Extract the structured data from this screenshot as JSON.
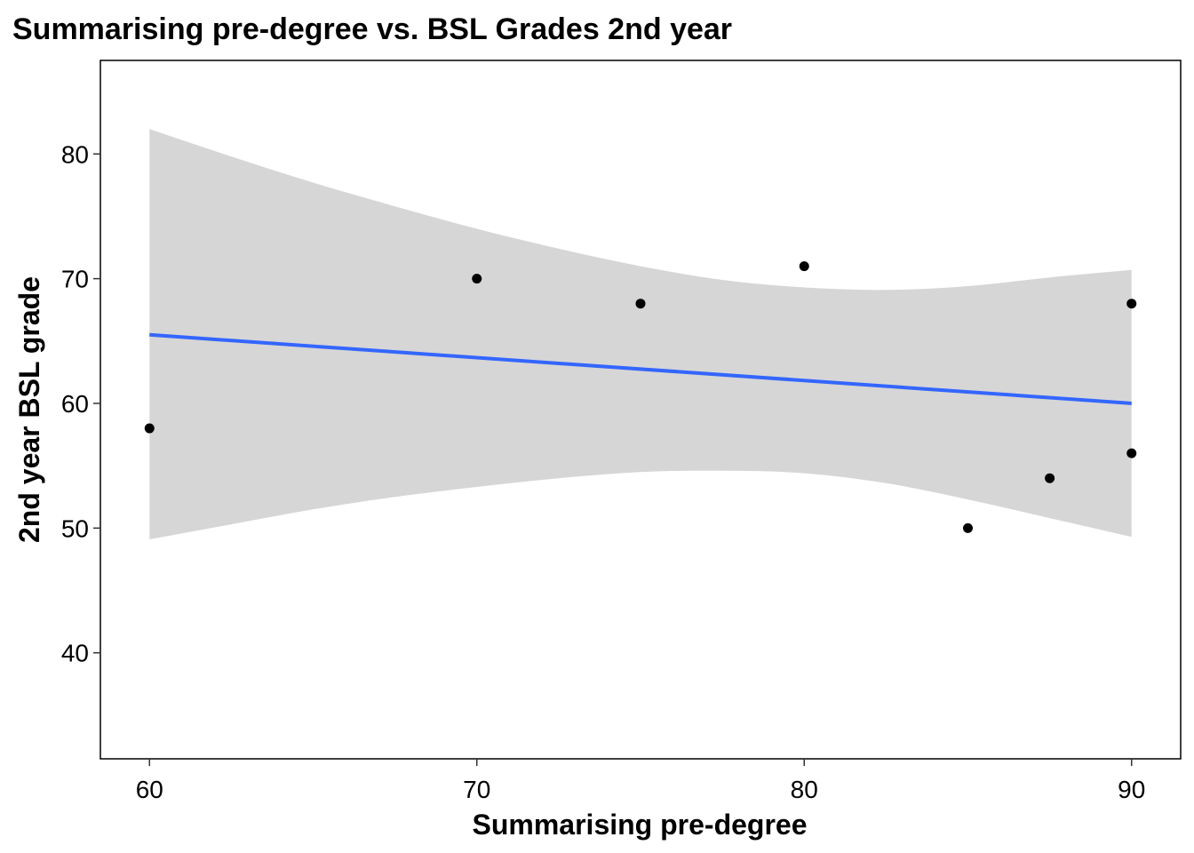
{
  "chart_data": {
    "type": "scatter",
    "title": "Summarising pre-degree vs. BSL Grades 2nd year",
    "xlabel": "Summarising pre-degree",
    "ylabel": "2nd year BSL grade",
    "xlim": [
      58.5,
      91.5
    ],
    "ylim": [
      31.5,
      87.5
    ],
    "x_ticks": [
      60,
      70,
      80,
      90
    ],
    "x_tick_labels": [
      "60",
      "70",
      "80",
      "90"
    ],
    "y_ticks": [
      40,
      50,
      60,
      70,
      80
    ],
    "y_tick_labels": [
      "40",
      "50",
      "60",
      "70",
      "80"
    ],
    "grid": false,
    "legend": "none",
    "points": [
      {
        "x": 60,
        "y": 58
      },
      {
        "x": 70,
        "y": 70
      },
      {
        "x": 75,
        "y": 68
      },
      {
        "x": 80,
        "y": 71
      },
      {
        "x": 85,
        "y": 50
      },
      {
        "x": 87.5,
        "y": 54
      },
      {
        "x": 90,
        "y": 68
      },
      {
        "x": 90,
        "y": 56
      }
    ],
    "regression_line": {
      "color": "#3366FF",
      "points": [
        {
          "x": 60,
          "y": 65.5
        },
        {
          "x": 90,
          "y": 60.0
        }
      ]
    },
    "confidence_band": {
      "color": "#D6D6D6",
      "x": [
        60,
        62.5,
        65,
        67.5,
        70,
        72.5,
        75,
        77.5,
        80,
        82.5,
        85,
        87.5,
        90
      ],
      "lower": [
        49.1,
        50.3,
        51.5,
        52.5,
        53.3,
        54.0,
        54.5,
        54.6,
        54.4,
        53.6,
        52.3,
        50.8,
        49.3
      ],
      "upper": [
        82.0,
        79.8,
        77.7,
        75.8,
        74.0,
        72.4,
        71.0,
        69.9,
        69.3,
        69.1,
        69.4,
        70.1,
        70.7
      ]
    },
    "point_color": "#000000"
  }
}
